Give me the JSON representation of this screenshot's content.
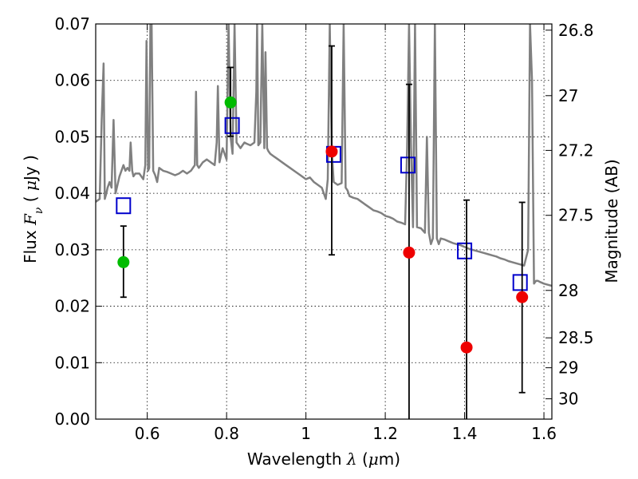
{
  "chart_data": {
    "type": "scatter",
    "xlabel": "Wavelength  λ (μm)",
    "ylabel": "Flux  Fν  ( μJy )",
    "y2label": "Magnitude (AB)",
    "xlim": [
      0.47,
      1.62
    ],
    "ylim": [
      0.0,
      0.07
    ],
    "grid": true,
    "x_ticks": [
      0.6,
      0.8,
      1.0,
      1.2,
      1.4,
      1.6
    ],
    "x_tick_labels": [
      "0.6",
      "0.8",
      "1",
      "1.2",
      "1.4",
      "1.6"
    ],
    "y_ticks": [
      0.0,
      0.01,
      0.02,
      0.03,
      0.04,
      0.05,
      0.06,
      0.07
    ],
    "y_tick_labels": [
      "0.00",
      "0.01",
      "0.02",
      "0.03",
      "0.04",
      "0.05",
      "0.06",
      "0.07"
    ],
    "mag_ticks": [
      {
        "label": "26.8",
        "flux": 0.0689
      },
      {
        "label": "27",
        "flux": 0.0573
      },
      {
        "label": "27.2",
        "flux": 0.0476
      },
      {
        "label": "27.5",
        "flux": 0.0361
      },
      {
        "label": "28",
        "flux": 0.0228
      },
      {
        "label": "28.5",
        "flux": 0.0144
      },
      {
        "label": "29",
        "flux": 0.0091
      },
      {
        "label": "30",
        "flux": 0.0036
      }
    ],
    "series": [
      {
        "name": "observed (green)",
        "color": "#00bb00",
        "points": [
          {
            "x": 0.54,
            "y": 0.0278,
            "err_low": 0.0216,
            "err_high": 0.0342
          },
          {
            "x": 0.81,
            "y": 0.0561,
            "err_low": 0.0501,
            "err_high": 0.0623
          }
        ]
      },
      {
        "name": "observed (red)",
        "color": "#ee0000",
        "points": [
          {
            "x": 1.065,
            "y": 0.0474,
            "err_low": 0.0291,
            "err_high": 0.0661
          },
          {
            "x": 1.26,
            "y": 0.0295,
            "err_low": 0.0,
            "err_high": 0.0593
          },
          {
            "x": 1.405,
            "y": 0.0127,
            "err_low": 0.0,
            "err_high": 0.0388
          },
          {
            "x": 1.545,
            "y": 0.0216,
            "err_low": 0.0047,
            "err_high": 0.0384
          }
        ]
      },
      {
        "name": "model (blue squares)",
        "color": "#0000cc",
        "points": [
          {
            "x": 0.54,
            "y": 0.0378
          },
          {
            "x": 0.814,
            "y": 0.052
          },
          {
            "x": 1.07,
            "y": 0.0469
          },
          {
            "x": 1.257,
            "y": 0.045
          },
          {
            "x": 1.4,
            "y": 0.0298
          },
          {
            "x": 1.54,
            "y": 0.0242
          }
        ]
      },
      {
        "name": "SED template",
        "color": "#808080",
        "type": "line",
        "x": [
          0.47,
          0.48,
          0.485,
          0.49,
          0.493,
          0.497,
          0.5,
          0.505,
          0.51,
          0.515,
          0.52,
          0.53,
          0.535,
          0.54,
          0.545,
          0.55,
          0.555,
          0.558,
          0.562,
          0.565,
          0.57,
          0.58,
          0.59,
          0.595,
          0.598,
          0.602,
          0.605,
          0.608,
          0.611,
          0.615,
          0.62,
          0.625,
          0.63,
          0.64,
          0.65,
          0.66,
          0.67,
          0.68,
          0.69,
          0.7,
          0.71,
          0.72,
          0.723,
          0.726,
          0.73,
          0.74,
          0.75,
          0.76,
          0.77,
          0.775,
          0.778,
          0.782,
          0.79,
          0.8,
          0.805,
          0.81,
          0.815,
          0.82,
          0.825,
          0.83,
          0.835,
          0.84,
          0.845,
          0.85,
          0.86,
          0.87,
          0.875,
          0.877,
          0.88,
          0.885,
          0.89,
          0.895,
          0.898,
          0.902,
          0.905,
          0.91,
          0.92,
          0.93,
          0.94,
          0.95,
          0.96,
          0.97,
          0.98,
          0.99,
          1.0,
          1.01,
          1.02,
          1.03,
          1.04,
          1.045,
          1.05,
          1.055,
          1.06,
          1.065,
          1.07,
          1.08,
          1.09,
          1.095,
          1.1,
          1.105,
          1.11,
          1.12,
          1.13,
          1.14,
          1.15,
          1.16,
          1.17,
          1.18,
          1.19,
          1.2,
          1.21,
          1.22,
          1.23,
          1.24,
          1.25,
          1.255,
          1.26,
          1.265,
          1.27,
          1.275,
          1.28,
          1.29,
          1.3,
          1.305,
          1.31,
          1.315,
          1.32,
          1.325,
          1.33,
          1.335,
          1.34,
          1.35,
          1.36,
          1.37,
          1.38,
          1.39,
          1.4,
          1.41,
          1.42,
          1.43,
          1.44,
          1.45,
          1.46,
          1.47,
          1.48,
          1.49,
          1.5,
          1.51,
          1.52,
          1.53,
          1.54,
          1.55,
          1.56,
          1.565,
          1.57,
          1.575,
          1.58,
          1.585,
          1.59,
          1.6,
          1.61,
          1.62
        ],
        "y": [
          0.0385,
          0.039,
          0.053,
          0.063,
          0.039,
          0.04,
          0.041,
          0.042,
          0.041,
          0.053,
          0.04,
          0.043,
          0.044,
          0.045,
          0.044,
          0.0445,
          0.044,
          0.049,
          0.044,
          0.043,
          0.0435,
          0.0435,
          0.0425,
          0.045,
          0.067,
          0.044,
          0.0445,
          0.07,
          0.07,
          0.044,
          0.0432,
          0.042,
          0.0445,
          0.044,
          0.0438,
          0.0435,
          0.0432,
          0.0435,
          0.044,
          0.0435,
          0.044,
          0.045,
          0.058,
          0.045,
          0.0445,
          0.0455,
          0.046,
          0.0455,
          0.045,
          0.049,
          0.059,
          0.0455,
          0.048,
          0.046,
          0.07,
          0.05,
          0.047,
          0.07,
          0.049,
          0.0485,
          0.048,
          0.0485,
          0.049,
          0.0488,
          0.0485,
          0.049,
          0.058,
          0.07,
          0.0485,
          0.049,
          0.07,
          0.048,
          0.065,
          0.048,
          0.0475,
          0.047,
          0.0465,
          0.046,
          0.0455,
          0.045,
          0.0445,
          0.044,
          0.0435,
          0.043,
          0.0425,
          0.0428,
          0.042,
          0.0415,
          0.041,
          0.04,
          0.039,
          0.0425,
          0.07,
          0.048,
          0.042,
          0.0415,
          0.0418,
          0.07,
          0.041,
          0.0405,
          0.0395,
          0.0392,
          0.039,
          0.0385,
          0.038,
          0.0375,
          0.037,
          0.0368,
          0.0365,
          0.036,
          0.0358,
          0.0355,
          0.035,
          0.0348,
          0.0345,
          0.048,
          0.07,
          0.048,
          0.034,
          0.07,
          0.034,
          0.0338,
          0.033,
          0.05,
          0.033,
          0.031,
          0.032,
          0.07,
          0.032,
          0.031,
          0.032,
          0.0318,
          0.0315,
          0.0312,
          0.031,
          0.0308,
          0.0305,
          0.0302,
          0.03,
          0.0298,
          0.0296,
          0.0294,
          0.0292,
          0.029,
          0.0288,
          0.0285,
          0.0283,
          0.028,
          0.0278,
          0.0276,
          0.0274,
          0.0272,
          0.03,
          0.07,
          0.06,
          0.024,
          0.0245,
          0.0245,
          0.0243,
          0.024,
          0.0238,
          0.0236
        ]
      }
    ]
  }
}
